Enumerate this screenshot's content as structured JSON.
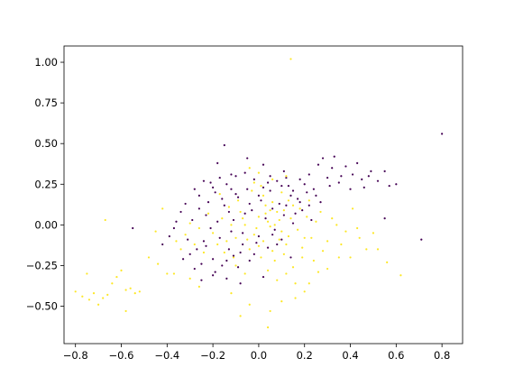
{
  "chart_data": {
    "type": "scatter",
    "title": "",
    "xlabel": "",
    "ylabel": "",
    "xlim": [
      -0.85,
      0.89
    ],
    "ylim": [
      -0.73,
      1.1
    ],
    "xticks": [
      -0.8,
      -0.6,
      -0.4,
      -0.2,
      0.0,
      0.2,
      0.4,
      0.6,
      0.8
    ],
    "xtick_labels": [
      "−0.8",
      "−0.6",
      "−0.4",
      "−0.2",
      "0.0",
      "0.2",
      "0.4",
      "0.6",
      "0.8"
    ],
    "yticks": [
      -0.5,
      -0.25,
      0.0,
      0.25,
      0.5,
      0.75,
      1.0
    ],
    "ytick_labels": [
      "−0.50",
      "−0.25",
      "0.00",
      "0.25",
      "0.50",
      "0.75",
      "1.00"
    ],
    "grid": false,
    "legend": "none",
    "series": [
      {
        "color": "#440154",
        "points": [
          [
            -0.15,
            0.49
          ],
          [
            -0.18,
            0.38
          ],
          [
            -0.21,
            0.26
          ],
          [
            -0.12,
            0.31
          ],
          [
            -0.05,
            0.41
          ],
          [
            0.02,
            0.37
          ],
          [
            0.11,
            0.33
          ],
          [
            0.18,
            0.28
          ],
          [
            0.22,
            0.31
          ],
          [
            0.28,
            0.41
          ],
          [
            0.33,
            0.42
          ],
          [
            0.38,
            0.36
          ],
          [
            0.41,
            0.31
          ],
          [
            0.45,
            0.28
          ],
          [
            0.49,
            0.33
          ],
          [
            0.52,
            0.27
          ],
          [
            0.55,
            0.33
          ],
          [
            0.57,
            0.24
          ],
          [
            0.6,
            0.25
          ],
          [
            0.46,
            0.23
          ],
          [
            0.4,
            0.22
          ],
          [
            0.35,
            0.26
          ],
          [
            0.3,
            0.29
          ],
          [
            0.25,
            0.18
          ],
          [
            0.32,
            0.35
          ],
          [
            0.43,
            0.38
          ],
          [
            0.36,
            0.3
          ],
          [
            0.26,
            0.37
          ],
          [
            0.31,
            0.24
          ],
          [
            0.48,
            0.3
          ],
          [
            0.8,
            0.56
          ],
          [
            0.71,
            -0.09
          ],
          [
            0.55,
            0.04
          ],
          [
            -0.39,
            -0.07
          ],
          [
            -0.42,
            -0.12
          ],
          [
            -0.37,
            -0.02
          ],
          [
            -0.34,
            0.08
          ],
          [
            -0.32,
            0.13
          ],
          [
            -0.3,
            -0.18
          ],
          [
            -0.28,
            -0.27
          ],
          [
            -0.25,
            -0.34
          ],
          [
            -0.2,
            -0.31
          ],
          [
            -0.14,
            -0.33
          ],
          [
            -0.08,
            -0.36
          ],
          [
            0.02,
            -0.32
          ],
          [
            0.08,
            -0.12
          ],
          [
            0.14,
            -0.2
          ],
          [
            -0.55,
            -0.02
          ],
          [
            -0.26,
            0.18
          ],
          [
            -0.23,
            0.06
          ],
          [
            -0.19,
            0.2
          ],
          [
            -0.17,
            -0.08
          ],
          [
            -0.15,
            0.12
          ],
          [
            -0.13,
            -0.15
          ],
          [
            -0.11,
            0.03
          ],
          [
            -0.09,
            0.17
          ],
          [
            -0.07,
            -0.05
          ],
          [
            -0.05,
            0.22
          ],
          [
            -0.03,
            0.09
          ],
          [
            -0.01,
            -0.11
          ],
          [
            0.01,
            0.15
          ],
          [
            0.03,
            0.04
          ],
          [
            0.05,
            0.21
          ],
          [
            0.07,
            -0.03
          ],
          [
            0.09,
            0.13
          ],
          [
            0.11,
            0.06
          ],
          [
            0.13,
            0.24
          ],
          [
            0.15,
            0.01
          ],
          [
            0.17,
            0.16
          ],
          [
            0.19,
            0.09
          ],
          [
            0.21,
            0.2
          ],
          [
            0.23,
            0.03
          ],
          [
            -0.24,
            -0.1
          ],
          [
            -0.22,
            0.14
          ],
          [
            -0.2,
            -0.21
          ],
          [
            -0.18,
            0.02
          ],
          [
            -0.16,
            -0.25
          ],
          [
            -0.14,
            0.25
          ],
          [
            -0.12,
            -0.04
          ],
          [
            -0.1,
            0.19
          ],
          [
            -0.08,
            -0.17
          ],
          [
            -0.06,
            0.07
          ],
          [
            -0.04,
            -0.22
          ],
          [
            -0.02,
            0.28
          ],
          [
            0.0,
            -0.07
          ],
          [
            0.02,
            0.23
          ],
          [
            0.04,
            -0.14
          ],
          [
            0.06,
            0.1
          ],
          [
            0.08,
            0.27
          ],
          [
            0.1,
            -0.09
          ],
          [
            0.12,
            0.12
          ],
          [
            0.14,
            0.18
          ],
          [
            0.16,
            0.07
          ],
          [
            0.18,
            0.14
          ],
          [
            -0.27,
            -0.15
          ],
          [
            -0.29,
            0.03
          ],
          [
            -0.31,
            -0.09
          ],
          [
            -0.26,
            0.1
          ],
          [
            -0.21,
            -0.02
          ],
          [
            -0.17,
            0.29
          ],
          [
            -0.13,
            0.08
          ],
          [
            -0.09,
            -0.26
          ],
          [
            -0.06,
            0.32
          ],
          [
            0.0,
            0.18
          ],
          [
            0.05,
            0.3
          ],
          [
            0.1,
            0.24
          ],
          [
            0.2,
            0.25
          ],
          [
            0.24,
            0.22
          ],
          [
            0.27,
            0.14
          ],
          [
            -0.2,
            0.23
          ],
          [
            -0.23,
            -0.13
          ],
          [
            -0.25,
            -0.24
          ],
          [
            -0.11,
            -0.19
          ],
          [
            -0.04,
            0.13
          ],
          [
            -0.07,
            -0.12
          ],
          [
            0.04,
            0.26
          ],
          [
            -0.16,
            0.16
          ],
          [
            -0.1,
            0.3
          ],
          [
            -0.19,
            -0.29
          ],
          [
            0.12,
            0.29
          ],
          [
            -0.28,
            0.22
          ],
          [
            -0.33,
            -0.21
          ],
          [
            -0.36,
            0.02
          ],
          [
            -0.24,
            0.27
          ],
          [
            -0.02,
            -0.18
          ],
          [
            0.06,
            -0.06
          ],
          [
            0.15,
            0.21
          ],
          [
            0.22,
            0.12
          ],
          [
            -0.12,
            0.22
          ],
          [
            -0.14,
            -0.22
          ]
        ]
      },
      {
        "color": "#fde725",
        "points": [
          [
            0.14,
            1.02
          ],
          [
            -0.8,
            -0.41
          ],
          [
            -0.77,
            -0.44
          ],
          [
            -0.74,
            -0.46
          ],
          [
            -0.72,
            -0.42
          ],
          [
            -0.7,
            -0.49
          ],
          [
            -0.68,
            -0.45
          ],
          [
            -0.66,
            -0.43
          ],
          [
            -0.64,
            -0.36
          ],
          [
            -0.62,
            -0.32
          ],
          [
            -0.6,
            -0.28
          ],
          [
            -0.58,
            -0.4
          ],
          [
            -0.56,
            -0.39
          ],
          [
            -0.54,
            -0.42
          ],
          [
            -0.52,
            -0.41
          ],
          [
            -0.67,
            0.03
          ],
          [
            -0.75,
            -0.3
          ],
          [
            -0.58,
            -0.53
          ],
          [
            0.04,
            -0.63
          ],
          [
            -0.08,
            -0.56
          ],
          [
            0.05,
            -0.53
          ],
          [
            -0.04,
            -0.49
          ],
          [
            0.1,
            -0.47
          ],
          [
            0.16,
            -0.45
          ],
          [
            -0.12,
            -0.42
          ],
          [
            0.2,
            -0.41
          ],
          [
            0.22,
            -0.36
          ],
          [
            0.26,
            -0.29
          ],
          [
            0.3,
            -0.27
          ],
          [
            0.35,
            -0.2
          ],
          [
            0.4,
            -0.2
          ],
          [
            0.47,
            -0.15
          ],
          [
            0.52,
            -0.15
          ],
          [
            0.56,
            -0.23
          ],
          [
            0.62,
            -0.31
          ],
          [
            0.38,
            -0.04
          ],
          [
            0.43,
            -0.02
          ],
          [
            0.32,
            0.04
          ],
          [
            0.25,
            0.02
          ],
          [
            0.3,
            -0.1
          ],
          [
            -0.42,
            0.1
          ],
          [
            -0.45,
            -0.04
          ],
          [
            -0.48,
            -0.2
          ],
          [
            -0.37,
            -0.3
          ],
          [
            -0.4,
            -0.3
          ],
          [
            -0.3,
            -0.33
          ],
          [
            -0.26,
            -0.38
          ],
          [
            -0.1,
            -0.08
          ],
          [
            -0.06,
            0.0
          ],
          [
            -0.02,
            -0.06
          ],
          [
            0.0,
            0.05
          ],
          [
            0.02,
            -0.1
          ],
          [
            0.04,
            0.02
          ],
          [
            0.06,
            -0.16
          ],
          [
            0.08,
            0.08
          ],
          [
            0.1,
            -0.04
          ],
          [
            0.12,
            -0.12
          ],
          [
            0.14,
            0.04
          ],
          [
            -0.08,
            0.08
          ],
          [
            -0.04,
            -0.15
          ],
          [
            0.01,
            -0.2
          ],
          [
            0.03,
            0.12
          ],
          [
            0.05,
            -0.01
          ],
          [
            0.07,
            -0.22
          ],
          [
            0.09,
            0.03
          ],
          [
            0.11,
            -0.18
          ],
          [
            0.13,
            -0.07
          ],
          [
            0.15,
            -0.26
          ],
          [
            0.17,
            -0.03
          ],
          [
            0.19,
            -0.14
          ],
          [
            0.21,
            0.05
          ],
          [
            0.23,
            -0.08
          ],
          [
            -0.12,
            0.0
          ],
          [
            -0.14,
            -0.1
          ],
          [
            -0.16,
            0.04
          ],
          [
            -0.18,
            -0.12
          ],
          [
            -0.2,
            -0.05
          ],
          [
            -0.22,
            0.07
          ],
          [
            -0.24,
            -0.17
          ],
          [
            -0.26,
            -0.02
          ],
          [
            -0.28,
            -0.12
          ],
          [
            -0.3,
            0.01
          ],
          [
            -0.32,
            -0.06
          ],
          [
            -0.34,
            -0.15
          ],
          [
            0.02,
            0.18
          ],
          [
            0.06,
            0.14
          ],
          [
            0.1,
            0.2
          ],
          [
            0.0,
            0.32
          ],
          [
            -0.02,
            0.26
          ],
          [
            0.04,
            -0.28
          ],
          [
            -0.06,
            -0.3
          ],
          [
            0.08,
            -0.34
          ],
          [
            -0.1,
            -0.25
          ],
          [
            0.12,
            -0.3
          ],
          [
            0.16,
            -0.36
          ],
          [
            0.18,
            0.1
          ],
          [
            0.22,
            0.15
          ],
          [
            0.27,
            0.08
          ],
          [
            0.34,
            0.0
          ],
          [
            0.36,
            -0.12
          ],
          [
            -0.09,
            0.15
          ],
          [
            -0.13,
            0.11
          ],
          [
            -0.17,
            0.19
          ],
          [
            -0.03,
            0.21
          ],
          [
            0.09,
            -0.09
          ],
          [
            0.13,
            0.15
          ],
          [
            0.19,
            -0.2
          ],
          [
            0.24,
            -0.22
          ],
          [
            -0.01,
            -0.02
          ],
          [
            0.03,
            0.07
          ],
          [
            0.07,
            0.0
          ],
          [
            0.11,
            0.09
          ],
          [
            -0.05,
            -0.09
          ],
          [
            -0.11,
            -0.2
          ],
          [
            0.0,
            -0.13
          ],
          [
            0.05,
            0.09
          ],
          [
            0.15,
            0.12
          ],
          [
            -0.07,
            0.04
          ],
          [
            -0.15,
            -0.17
          ],
          [
            0.2,
            -0.08
          ],
          [
            0.28,
            -0.16
          ],
          [
            0.44,
            -0.08
          ],
          [
            0.5,
            -0.05
          ],
          [
            0.41,
            0.1
          ],
          [
            -0.36,
            -0.1
          ],
          [
            -0.44,
            -0.24
          ],
          [
            0.01,
            0.24
          ],
          [
            0.06,
            0.28
          ],
          [
            0.12,
            0.3
          ],
          [
            -0.04,
            0.35
          ]
        ]
      }
    ]
  }
}
